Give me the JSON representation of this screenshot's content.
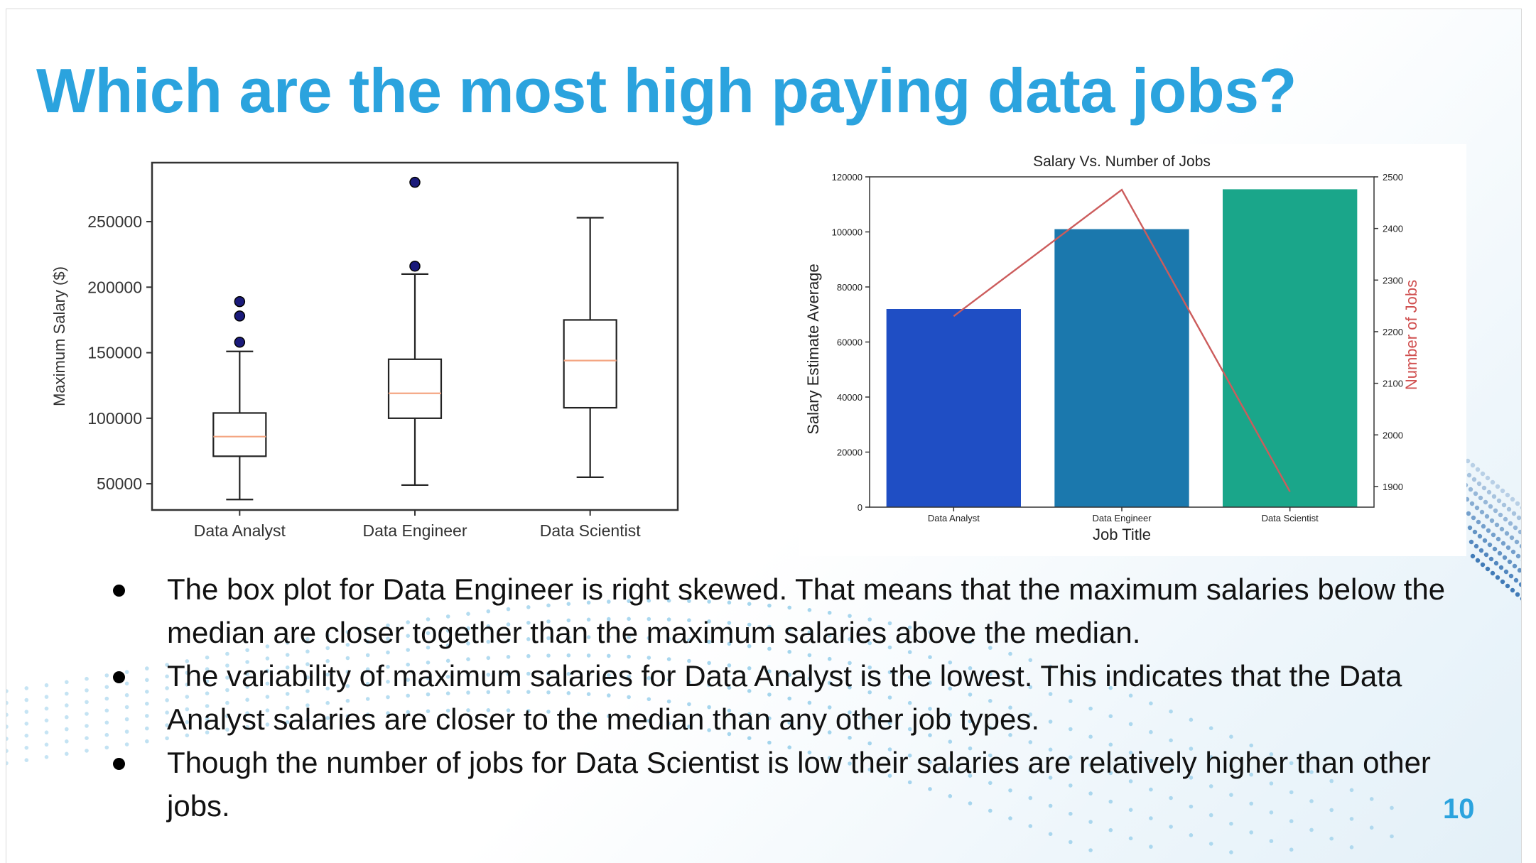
{
  "slide": {
    "title": "Which are the most high paying data jobs?",
    "page_number": "10",
    "accent_color": "#2ba3de",
    "bullets": [
      "The box plot for Data Engineer is right skewed. That means that the maximum salaries below the median are closer together than the maximum salaries above the median.",
      "The variability of maximum salaries for Data Analyst is the lowest. This indicates that the Data Analyst salaries are closer to the median than any other job types.",
      "Though the number of jobs for Data Scientist is low their salaries are relatively higher than other jobs."
    ]
  },
  "chart_data": [
    {
      "type": "box",
      "title": "",
      "ylabel": "Maximum Salary ($)",
      "xlabel": "",
      "ylim": [
        30000,
        295000
      ],
      "yticks": [
        50000,
        100000,
        150000,
        200000,
        250000
      ],
      "grid": false,
      "median_color": "#f4a582",
      "flier_color": "#1a1a7a",
      "categories": [
        "Data Analyst",
        "Data Engineer",
        "Data Scientist"
      ],
      "boxes": [
        {
          "whisker_low": 38000,
          "q1": 71000,
          "median": 86000,
          "q3": 104000,
          "whisker_high": 151000,
          "fliers": [
            158000,
            178000,
            189000
          ]
        },
        {
          "whisker_low": 49000,
          "q1": 100000,
          "median": 119000,
          "q3": 145000,
          "whisker_high": 210000,
          "fliers": [
            216000,
            280000
          ]
        },
        {
          "whisker_low": 55000,
          "q1": 108000,
          "median": 144000,
          "q3": 175000,
          "whisker_high": 253000,
          "fliers": []
        }
      ]
    },
    {
      "type": "bar",
      "title": "Salary Vs. Number of Jobs",
      "xlabel": "Job Title",
      "ylabel": "Salary Estimate Average",
      "ylabel_right": "Number of Jobs",
      "ylabel_right_color": "#d05050",
      "ylim": [
        0,
        120000
      ],
      "yticks": [
        0,
        20000,
        40000,
        60000,
        80000,
        100000,
        120000
      ],
      "ylim_right": [
        1860,
        2500
      ],
      "yticks_right": [
        1900,
        2000,
        2100,
        2200,
        2300,
        2400,
        2500
      ],
      "categories": [
        "Data Analyst",
        "Data Engineer",
        "Data Scientist"
      ],
      "bar_colors": [
        "#1f4ec4",
        "#1b78ad",
        "#1aa68a"
      ],
      "line_color": "#cc5c5c",
      "series": [
        {
          "values": [
            72000,
            101000,
            115500
          ]
        },
        {
          "axis": "right",
          "type": "line",
          "values": [
            2230,
            2475,
            1890
          ]
        }
      ]
    }
  ]
}
